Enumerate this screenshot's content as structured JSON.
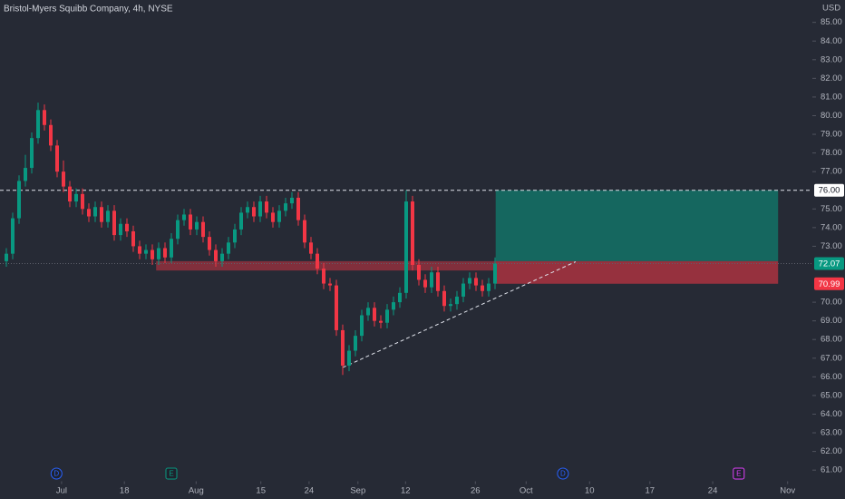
{
  "chart_data": {
    "type": "candlestick",
    "title": "Bristol-Myers Squibb Company, 4h, NYSE",
    "currency": "USD",
    "xlim": [
      -1,
      127
    ],
    "ylim": [
      60.4,
      86.2
    ],
    "xticks": [
      {
        "value": 8.7,
        "label": "Jul"
      },
      {
        "value": 18.6,
        "label": "18"
      },
      {
        "value": 29.9,
        "label": "Aug"
      },
      {
        "value": 40.1,
        "label": "15"
      },
      {
        "value": 47.7,
        "label": "24"
      },
      {
        "value": 55.4,
        "label": "Sep"
      },
      {
        "value": 62.9,
        "label": "12"
      },
      {
        "value": 73.9,
        "label": "26"
      },
      {
        "value": 81.9,
        "label": "Oct"
      },
      {
        "value": 91.9,
        "label": "10"
      },
      {
        "value": 101.4,
        "label": "17"
      },
      {
        "value": 111.3,
        "label": "24"
      },
      {
        "value": 123.1,
        "label": "Nov"
      }
    ],
    "yticks": [
      {
        "value": 61,
        "label": "61.00"
      },
      {
        "value": 62,
        "label": "62.00"
      },
      {
        "value": 63,
        "label": "63.00"
      },
      {
        "value": 64,
        "label": "64.00"
      },
      {
        "value": 65,
        "label": "65.00"
      },
      {
        "value": 66,
        "label": "66.00"
      },
      {
        "value": 67,
        "label": "67.00"
      },
      {
        "value": 68,
        "label": "68.00"
      },
      {
        "value": 69,
        "label": "69.00"
      },
      {
        "value": 70,
        "label": "70.00"
      },
      {
        "value": 73,
        "label": "73.00"
      },
      {
        "value": 74,
        "label": "74.00"
      },
      {
        "value": 75,
        "label": "75.00"
      },
      {
        "value": 77,
        "label": "77.00"
      },
      {
        "value": 78,
        "label": "78.00"
      },
      {
        "value": 79,
        "label": "79.00"
      },
      {
        "value": 80,
        "label": "80.00"
      },
      {
        "value": 81,
        "label": "81.00"
      },
      {
        "value": 82,
        "label": "82.00"
      },
      {
        "value": 83,
        "label": "83.00"
      },
      {
        "value": 84,
        "label": "84.00"
      },
      {
        "value": 85,
        "label": "85.00"
      }
    ],
    "up_color": "#089981",
    "down_color": "#f23645",
    "open": [
      72.2,
      72.6,
      74.5,
      76.5,
      77.2,
      78.8,
      80.3,
      79.5,
      78.4,
      77.0,
      76.2,
      75.4,
      75.8,
      75.0,
      74.6,
      75.1,
      74.3,
      74.9,
      73.6,
      74.2,
      73.8,
      73.0,
      72.6,
      72.8,
      72.3,
      72.9,
      72.4,
      73.4,
      74.4,
      74.7,
      73.9,
      74.3,
      73.5,
      72.8,
      72.2,
      72.6,
      73.2,
      73.9,
      74.8,
      75.1,
      74.6,
      75.4,
      74.8,
      74.3,
      74.9,
      75.3,
      75.6,
      74.4,
      73.2,
      72.6,
      71.8,
      71.0,
      70.9,
      68.5,
      66.6,
      67.4,
      68.2,
      69.3,
      69.7,
      69.0,
      68.9,
      69.6,
      70.0,
      70.5,
      75.4,
      72.0,
      71.2,
      70.8,
      71.6,
      70.6,
      69.8,
      69.9,
      70.3,
      71.0,
      71.3,
      70.9,
      70.6,
      71.0
    ],
    "high": [
      72.9,
      74.8,
      76.8,
      77.9,
      79.1,
      80.7,
      80.6,
      79.8,
      78.7,
      77.6,
      76.5,
      76.1,
      76.1,
      75.3,
      75.4,
      75.4,
      75.2,
      75.2,
      74.5,
      74.5,
      74.1,
      73.3,
      73.1,
      73.1,
      73.2,
      73.2,
      73.7,
      74.7,
      75.0,
      75.0,
      74.6,
      74.6,
      73.8,
      73.1,
      72.9,
      73.5,
      74.2,
      75.1,
      75.4,
      75.4,
      75.7,
      75.7,
      75.1,
      75.2,
      75.6,
      75.9,
      75.9,
      74.7,
      73.5,
      72.9,
      72.1,
      71.3,
      71.2,
      68.8,
      67.7,
      68.5,
      69.6,
      70.0,
      70.0,
      69.3,
      69.9,
      70.3,
      70.8,
      76.0,
      75.7,
      72.3,
      71.5,
      71.9,
      71.9,
      70.9,
      70.2,
      70.6,
      71.3,
      71.6,
      71.6,
      71.2,
      71.3,
      72.4
    ],
    "low": [
      71.9,
      72.3,
      74.2,
      76.2,
      76.9,
      78.5,
      79.2,
      78.1,
      76.7,
      75.9,
      75.1,
      75.1,
      74.7,
      74.3,
      74.3,
      74.0,
      74.0,
      73.3,
      73.3,
      73.5,
      72.7,
      72.3,
      72.3,
      72.0,
      72.0,
      72.1,
      72.1,
      73.1,
      74.1,
      73.6,
      73.6,
      73.2,
      72.5,
      71.9,
      71.9,
      72.3,
      72.9,
      73.6,
      74.5,
      74.3,
      74.3,
      74.5,
      74.0,
      74.0,
      74.6,
      75.0,
      74.1,
      72.9,
      72.3,
      71.5,
      70.7,
      70.6,
      68.2,
      66.1,
      66.3,
      67.1,
      67.9,
      69.0,
      68.7,
      68.6,
      68.6,
      69.3,
      69.7,
      70.2,
      71.7,
      70.9,
      70.5,
      70.5,
      70.3,
      69.5,
      69.5,
      69.6,
      70.0,
      70.7,
      70.6,
      70.3,
      70.3,
      70.7
    ],
    "close": [
      72.6,
      74.5,
      76.5,
      77.2,
      78.8,
      80.3,
      79.5,
      78.4,
      77.0,
      76.2,
      75.4,
      75.8,
      75.0,
      74.6,
      75.1,
      74.3,
      74.9,
      73.6,
      74.2,
      73.8,
      73.0,
      72.6,
      72.8,
      72.3,
      72.9,
      72.4,
      73.4,
      74.4,
      74.7,
      73.9,
      74.3,
      73.5,
      72.8,
      72.2,
      72.6,
      73.2,
      73.9,
      74.8,
      75.1,
      74.6,
      75.4,
      74.8,
      74.3,
      74.9,
      75.3,
      75.6,
      74.4,
      73.2,
      72.6,
      71.8,
      71.0,
      70.9,
      68.5,
      66.6,
      67.4,
      68.2,
      69.3,
      69.7,
      69.0,
      68.9,
      69.6,
      70.0,
      70.5,
      75.4,
      72.0,
      71.2,
      70.8,
      71.6,
      70.6,
      69.8,
      69.9,
      70.3,
      71.0,
      71.3,
      70.9,
      70.6,
      71.0,
      72.07
    ],
    "last_price": {
      "value": 72.07,
      "label": "72.07",
      "color": "#089981"
    },
    "zone": {
      "x": [
        23.6,
        77.1
      ],
      "low": 71.7,
      "high": 72.2,
      "color": "rgba(242,54,69,0.45)"
    },
    "position": {
      "x": [
        77.1,
        121.6
      ],
      "entry": 72.2,
      "target": 76,
      "stop": 70.99,
      "target_label": "76.00",
      "stop_label": "70.99",
      "profit_color": "rgba(8,153,129,0.55)",
      "loss_color": "rgba(242,54,69,0.55)"
    },
    "trendline": {
      "x": [
        53,
        89.7
      ],
      "y": [
        66.5,
        72.17
      ]
    },
    "events": [
      {
        "label": "D",
        "x": 7.9,
        "shape": "circle",
        "color": "#2962ff"
      },
      {
        "label": "E",
        "x": 26,
        "shape": "square",
        "color": "#089981"
      },
      {
        "label": "D",
        "x": 87.7,
        "shape": "circle",
        "color": "#2962ff"
      },
      {
        "label": "E",
        "x": 115.4,
        "shape": "square",
        "color": "#e040fb"
      }
    ]
  }
}
